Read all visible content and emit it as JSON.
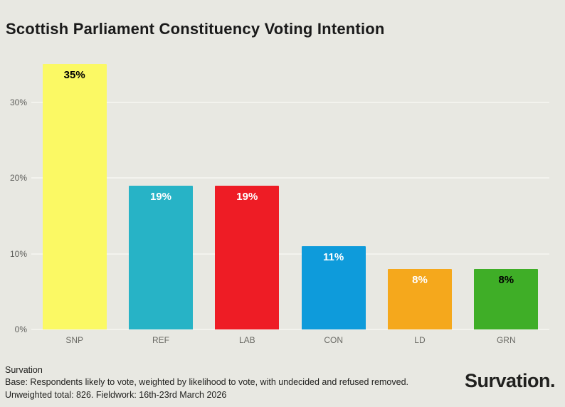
{
  "title": "Scottish Parliament Constituency Voting Intention",
  "chart_data": {
    "type": "bar",
    "title": "Scottish Parliament Constituency Voting Intention",
    "categories": [
      "SNP",
      "REF",
      "LAB",
      "CON",
      "LD",
      "GRN"
    ],
    "values": [
      35,
      19,
      19,
      11,
      8,
      8
    ],
    "value_labels": [
      "35%",
      "19%",
      "19%",
      "11%",
      "8%",
      "8%"
    ],
    "bar_colors": [
      "#fbf964",
      "#27b3c6",
      "#ee1c25",
      "#0e9bdb",
      "#f5a81c",
      "#3fae27"
    ],
    "value_label_colors": [
      "#000000",
      "#ffffff",
      "#ffffff",
      "#ffffff",
      "#ffffff",
      "#000000"
    ],
    "xlabel": "",
    "ylabel": "",
    "ylim": [
      0,
      35.5
    ],
    "yticks": [
      0,
      10,
      20,
      30
    ],
    "ytick_labels": [
      "0%",
      "10%",
      "20%",
      "30%"
    ],
    "grid": true,
    "legend": false
  },
  "footer": {
    "source": "Survation",
    "base_note": "Base: Respondents likely to vote, weighted by likelihood to vote, with undecided and refused removed.",
    "fieldwork_note": "Unweighted total: 826. Fieldwork: 16th-23rd March 2026",
    "logo": "Survation."
  },
  "colors": {
    "background": "#e8e8e2",
    "gridline": "#f3f3ee",
    "axis_text": "#5f5f5c",
    "category_text": "#6b6b66",
    "title_text": "#1a1a1a",
    "footer_text": "#1f1f1d",
    "logo_text": "#21211f"
  }
}
